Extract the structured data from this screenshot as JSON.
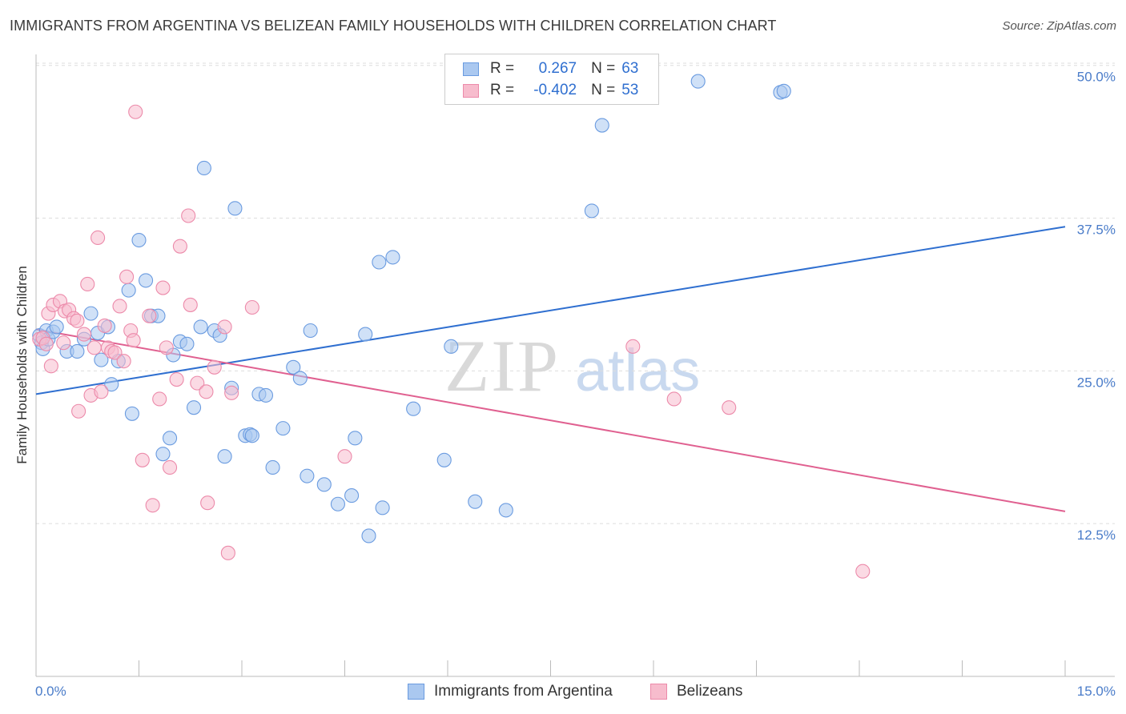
{
  "header": {
    "title": "IMMIGRANTS FROM ARGENTINA VS BELIZEAN FAMILY HOUSEHOLDS WITH CHILDREN CORRELATION CHART",
    "source": "Source: ZipAtlas.com"
  },
  "legend": {
    "series1": {
      "r_label": "R =",
      "r_value": "0.267",
      "n_label": "N =",
      "n_value": "63"
    },
    "series2": {
      "r_label": "R =",
      "r_value": "-0.402",
      "n_label": "N =",
      "n_value": "53"
    }
  },
  "bottom_legend": {
    "series1": "Immigrants from Argentina",
    "series2": "Belizeans"
  },
  "colors": {
    "series1_fill": "#aac8f0",
    "series1_stroke": "#6a9be0",
    "series1_line": "#2f6fd0",
    "series2_fill": "#f7bccd",
    "series2_stroke": "#ec8aaa",
    "series2_line": "#e06090",
    "tick_text": "#4a7cc9",
    "grid": "#dddddd"
  },
  "chart_data": {
    "type": "scatter",
    "title": "IMMIGRANTS FROM ARGENTINA VS BELIZEAN FAMILY HOUSEHOLDS WITH CHILDREN CORRELATION CHART",
    "xlabel": "",
    "ylabel": "Family Households with Children",
    "xlim": [
      0,
      15
    ],
    "ylim": [
      0,
      50.9
    ],
    "x_tick_labels": [
      {
        "value": 0,
        "label": "0.0%"
      },
      {
        "value": 15,
        "label": "15.0%"
      }
    ],
    "y_tick_labels": [
      {
        "value": 12.5,
        "label": "12.5%"
      },
      {
        "value": 25.0,
        "label": "25.0%"
      },
      {
        "value": 37.5,
        "label": "37.5%"
      },
      {
        "value": 50.0,
        "label": "50.0%"
      }
    ],
    "x_minor_ticks": [
      1.5,
      3.0,
      4.5,
      6.0,
      7.5,
      9.0,
      10.5,
      12.0,
      13.5,
      15.0
    ],
    "grid": true,
    "series": [
      {
        "name": "Immigrants from Argentina",
        "points": [
          [
            0.05,
            27.9
          ],
          [
            0.08,
            27.3
          ],
          [
            0.1,
            26.8
          ],
          [
            0.15,
            28.3
          ],
          [
            0.18,
            27.6
          ],
          [
            0.25,
            28.2
          ],
          [
            0.3,
            28.6
          ],
          [
            0.45,
            26.6
          ],
          [
            0.6,
            26.6
          ],
          [
            0.7,
            27.6
          ],
          [
            0.8,
            29.7
          ],
          [
            0.9,
            28.1
          ],
          [
            0.95,
            25.9
          ],
          [
            1.05,
            28.6
          ],
          [
            1.1,
            23.9
          ],
          [
            1.2,
            25.8
          ],
          [
            1.35,
            31.6
          ],
          [
            1.4,
            21.5
          ],
          [
            1.5,
            35.7
          ],
          [
            1.6,
            32.4
          ],
          [
            1.68,
            29.5
          ],
          [
            1.78,
            29.5
          ],
          [
            1.85,
            18.2
          ],
          [
            1.95,
            19.5
          ],
          [
            2.0,
            26.3
          ],
          [
            2.1,
            27.4
          ],
          [
            2.2,
            27.2
          ],
          [
            2.3,
            22.0
          ],
          [
            2.4,
            28.6
          ],
          [
            2.45,
            41.6
          ],
          [
            2.6,
            28.3
          ],
          [
            2.68,
            27.9
          ],
          [
            2.75,
            18.0
          ],
          [
            2.85,
            23.6
          ],
          [
            2.9,
            38.3
          ],
          [
            3.05,
            19.7
          ],
          [
            3.12,
            19.8
          ],
          [
            3.15,
            19.7
          ],
          [
            3.25,
            23.1
          ],
          [
            3.35,
            23.0
          ],
          [
            3.45,
            17.1
          ],
          [
            3.6,
            20.3
          ],
          [
            3.75,
            25.3
          ],
          [
            3.85,
            24.4
          ],
          [
            3.95,
            16.4
          ],
          [
            4.0,
            28.3
          ],
          [
            4.2,
            15.7
          ],
          [
            4.4,
            14.1
          ],
          [
            4.6,
            14.8
          ],
          [
            4.65,
            19.5
          ],
          [
            4.8,
            28.0
          ],
          [
            4.85,
            11.5
          ],
          [
            5.0,
            33.9
          ],
          [
            5.05,
            13.8
          ],
          [
            5.2,
            34.3
          ],
          [
            5.5,
            21.9
          ],
          [
            5.95,
            17.7
          ],
          [
            6.05,
            27.0
          ],
          [
            6.4,
            14.3
          ],
          [
            6.85,
            13.6
          ],
          [
            8.1,
            38.1
          ],
          [
            8.25,
            45.1
          ],
          [
            9.65,
            48.7
          ],
          [
            10.85,
            47.8
          ],
          [
            10.9,
            47.9
          ]
        ]
      },
      {
        "name": "Belizeans",
        "points": [
          [
            0.05,
            27.6
          ],
          [
            0.1,
            27.7
          ],
          [
            0.15,
            27.2
          ],
          [
            0.18,
            29.7
          ],
          [
            0.22,
            25.4
          ],
          [
            0.25,
            30.4
          ],
          [
            0.35,
            30.7
          ],
          [
            0.4,
            27.3
          ],
          [
            0.42,
            29.9
          ],
          [
            0.48,
            30.0
          ],
          [
            0.55,
            29.3
          ],
          [
            0.6,
            29.1
          ],
          [
            0.62,
            21.7
          ],
          [
            0.7,
            28.0
          ],
          [
            0.75,
            32.1
          ],
          [
            0.8,
            23.0
          ],
          [
            0.85,
            26.9
          ],
          [
            0.9,
            35.9
          ],
          [
            0.95,
            23.3
          ],
          [
            1.0,
            28.7
          ],
          [
            1.05,
            26.9
          ],
          [
            1.1,
            26.6
          ],
          [
            1.15,
            26.5
          ],
          [
            1.22,
            30.3
          ],
          [
            1.28,
            25.8
          ],
          [
            1.32,
            32.7
          ],
          [
            1.38,
            28.3
          ],
          [
            1.42,
            27.5
          ],
          [
            1.45,
            46.2
          ],
          [
            1.55,
            17.7
          ],
          [
            1.65,
            29.5
          ],
          [
            1.7,
            14.0
          ],
          [
            1.8,
            22.7
          ],
          [
            1.85,
            31.8
          ],
          [
            1.9,
            26.9
          ],
          [
            1.95,
            17.1
          ],
          [
            2.05,
            24.3
          ],
          [
            2.1,
            35.2
          ],
          [
            2.22,
            37.7
          ],
          [
            2.25,
            30.4
          ],
          [
            2.35,
            24.0
          ],
          [
            2.48,
            23.3
          ],
          [
            2.5,
            14.2
          ],
          [
            2.6,
            25.3
          ],
          [
            2.75,
            28.6
          ],
          [
            2.8,
            10.1
          ],
          [
            2.85,
            23.2
          ],
          [
            3.15,
            30.2
          ],
          [
            4.5,
            18.0
          ],
          [
            8.7,
            27.0
          ],
          [
            9.3,
            22.7
          ],
          [
            10.1,
            22.0
          ],
          [
            12.05,
            8.6
          ]
        ]
      }
    ],
    "trend_lines": [
      {
        "name": "Immigrants from Argentina",
        "x": [
          0,
          15
        ],
        "y": [
          23.1,
          36.8
        ]
      },
      {
        "name": "Belizeans",
        "x": [
          0,
          15
        ],
        "y": [
          28.4,
          13.5
        ]
      }
    ]
  }
}
